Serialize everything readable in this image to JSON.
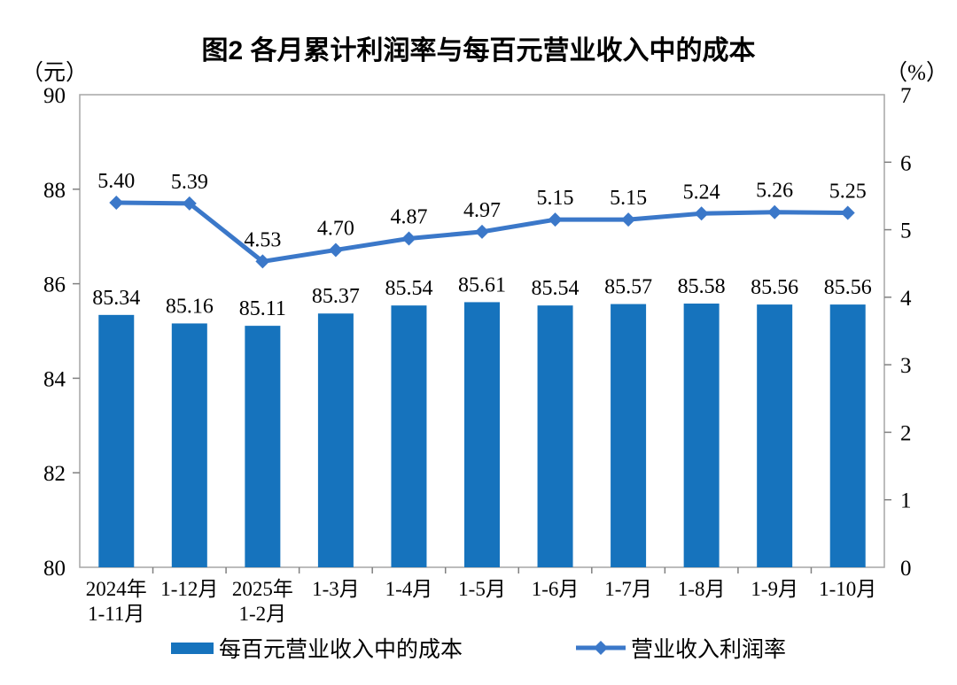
{
  "colors": {
    "bar": "#1673BD",
    "line": "#3B78C9",
    "frame": "#A6A6A6",
    "tick": "#808080",
    "text": "#000000"
  },
  "chart_data": {
    "type": "bar+line",
    "title": "图2 各月累计利润率与每百元营业收入中的成本",
    "categories": [
      [
        "2024年",
        "1-11月"
      ],
      [
        "1-12月"
      ],
      [
        "2025年",
        "1-2月"
      ],
      [
        "1-3月"
      ],
      [
        "1-4月"
      ],
      [
        "1-5月"
      ],
      [
        "1-6月"
      ],
      [
        "1-7月"
      ],
      [
        "1-8月"
      ],
      [
        "1-9月"
      ],
      [
        "1-10月"
      ]
    ],
    "series": [
      {
        "name": "每百元营业收入中的成本",
        "type": "bar",
        "axis": "left",
        "values": [
          85.34,
          85.16,
          85.11,
          85.37,
          85.54,
          85.61,
          85.54,
          85.57,
          85.58,
          85.56,
          85.56
        ]
      },
      {
        "name": "营业收入利润率",
        "type": "line",
        "axis": "right",
        "values": [
          5.4,
          5.39,
          4.53,
          4.7,
          4.87,
          4.97,
          5.15,
          5.15,
          5.24,
          5.26,
          5.25
        ]
      }
    ],
    "left_axis": {
      "unit": "（元）",
      "min": 80,
      "max": 90,
      "ticks": [
        80,
        82,
        84,
        86,
        88,
        90
      ]
    },
    "right_axis": {
      "unit": "（%）",
      "min": 0,
      "max": 7,
      "ticks": [
        0,
        1,
        2,
        3,
        4,
        5,
        6,
        7
      ]
    },
    "grid": false,
    "legend_position": "bottom",
    "value_label_decimals": 2
  }
}
